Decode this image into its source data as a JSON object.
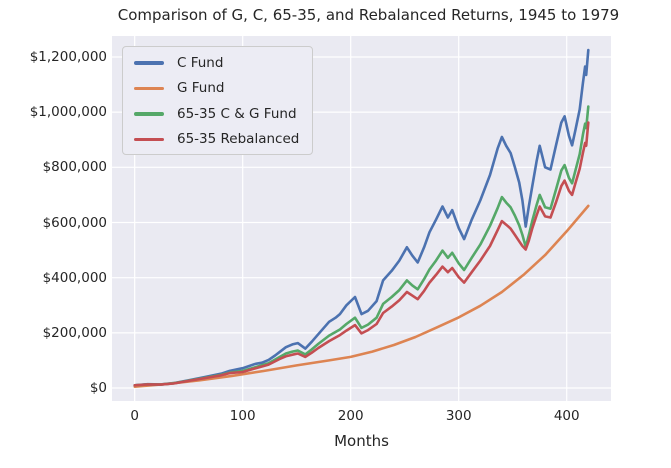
{
  "figure": {
    "background": "#ffffff",
    "plot_background": "#eaeaf2",
    "grid_color": "#ffffff",
    "text_color": "#262626"
  },
  "chart_data": {
    "type": "line",
    "title": "Comparison of G, C, 65-35, and Rebalanced Returns, 1945 to 1979",
    "xlabel": "Months",
    "ylabel": "",
    "grid": true,
    "legend_position": "upper-left",
    "xlim": [
      -21,
      441
    ],
    "ylim": [
      -47000,
      1276000
    ],
    "x_ticks": [
      {
        "value": 0,
        "label": "0"
      },
      {
        "value": 100,
        "label": "100"
      },
      {
        "value": 200,
        "label": "200"
      },
      {
        "value": 300,
        "label": "300"
      },
      {
        "value": 400,
        "label": "400"
      }
    ],
    "y_ticks": [
      {
        "value": 0,
        "label": "$0"
      },
      {
        "value": 200000,
        "label": "$200,000"
      },
      {
        "value": 400000,
        "label": "$400,000"
      },
      {
        "value": 600000,
        "label": "$600,000"
      },
      {
        "value": 800000,
        "label": "$800,000"
      },
      {
        "value": 1000000,
        "label": "$1,000,000"
      },
      {
        "value": 1200000,
        "label": "$1,200,000"
      }
    ],
    "series": [
      {
        "name": "C Fund",
        "color": "#4c72b0",
        "points": [
          [
            0,
            10000
          ],
          [
            12,
            14000
          ],
          [
            24,
            13000
          ],
          [
            36,
            18000
          ],
          [
            50,
            28000
          ],
          [
            65,
            40000
          ],
          [
            80,
            52000
          ],
          [
            88,
            62000
          ],
          [
            95,
            68000
          ],
          [
            100,
            72000
          ],
          [
            106,
            80000
          ],
          [
            112,
            88000
          ],
          [
            118,
            92000
          ],
          [
            124,
            102000
          ],
          [
            130,
            118000
          ],
          [
            134,
            130000
          ],
          [
            140,
            148000
          ],
          [
            146,
            158000
          ],
          [
            151,
            163000
          ],
          [
            158,
            143000
          ],
          [
            164,
            168000
          ],
          [
            170,
            195000
          ],
          [
            180,
            240000
          ],
          [
            186,
            255000
          ],
          [
            190,
            268000
          ],
          [
            196,
            300000
          ],
          [
            204,
            330000
          ],
          [
            210,
            268000
          ],
          [
            216,
            280000
          ],
          [
            224,
            315000
          ],
          [
            230,
            390000
          ],
          [
            238,
            425000
          ],
          [
            245,
            462000
          ],
          [
            252,
            510000
          ],
          [
            257,
            480000
          ],
          [
            262,
            455000
          ],
          [
            268,
            510000
          ],
          [
            273,
            565000
          ],
          [
            279,
            610000
          ],
          [
            285,
            658000
          ],
          [
            290,
            618000
          ],
          [
            294,
            645000
          ],
          [
            300,
            580000
          ],
          [
            305,
            540000
          ],
          [
            312,
            610000
          ],
          [
            320,
            680000
          ],
          [
            329,
            772000
          ],
          [
            336,
            868000
          ],
          [
            340,
            910000
          ],
          [
            344,
            878000
          ],
          [
            348,
            852000
          ],
          [
            352,
            800000
          ],
          [
            356,
            745000
          ],
          [
            359,
            680000
          ],
          [
            362,
            585000
          ],
          [
            365,
            660000
          ],
          [
            368,
            730000
          ],
          [
            372,
            820000
          ],
          [
            375,
            878000
          ],
          [
            380,
            800000
          ],
          [
            385,
            792000
          ],
          [
            390,
            878000
          ],
          [
            395,
            962000
          ],
          [
            398,
            985000
          ],
          [
            402,
            915000
          ],
          [
            405,
            880000
          ],
          [
            408,
            935000
          ],
          [
            412,
            1010000
          ],
          [
            415,
            1105000
          ],
          [
            417,
            1165000
          ],
          [
            418,
            1135000
          ],
          [
            420,
            1225000
          ]
        ]
      },
      {
        "name": "G Fund",
        "color": "#dd8452",
        "points": [
          [
            0,
            5000
          ],
          [
            30,
            15000
          ],
          [
            60,
            28000
          ],
          [
            90,
            44000
          ],
          [
            120,
            62000
          ],
          [
            150,
            82000
          ],
          [
            180,
            100000
          ],
          [
            200,
            113000
          ],
          [
            220,
            132000
          ],
          [
            240,
            156000
          ],
          [
            260,
            185000
          ],
          [
            280,
            220000
          ],
          [
            300,
            256000
          ],
          [
            320,
            298000
          ],
          [
            340,
            348000
          ],
          [
            360,
            410000
          ],
          [
            380,
            482000
          ],
          [
            400,
            568000
          ],
          [
            420,
            660000
          ]
        ]
      },
      {
        "name": "65-35 C & G Fund",
        "color": "#55a868",
        "points": [
          [
            0,
            10000
          ],
          [
            12,
            13000
          ],
          [
            24,
            12500
          ],
          [
            36,
            17000
          ],
          [
            50,
            27000
          ],
          [
            65,
            37000
          ],
          [
            80,
            48000
          ],
          [
            88,
            56000
          ],
          [
            100,
            62000
          ],
          [
            112,
            76000
          ],
          [
            124,
            90000
          ],
          [
            134,
            112000
          ],
          [
            140,
            125000
          ],
          [
            146,
            132000
          ],
          [
            151,
            136000
          ],
          [
            158,
            122000
          ],
          [
            164,
            140000
          ],
          [
            170,
            160000
          ],
          [
            180,
            190000
          ],
          [
            190,
            212000
          ],
          [
            196,
            232000
          ],
          [
            204,
            255000
          ],
          [
            210,
            218000
          ],
          [
            216,
            230000
          ],
          [
            224,
            255000
          ],
          [
            230,
            305000
          ],
          [
            238,
            330000
          ],
          [
            245,
            355000
          ],
          [
            252,
            390000
          ],
          [
            257,
            372000
          ],
          [
            262,
            358000
          ],
          [
            268,
            395000
          ],
          [
            273,
            430000
          ],
          [
            279,
            462000
          ],
          [
            285,
            498000
          ],
          [
            290,
            472000
          ],
          [
            294,
            490000
          ],
          [
            300,
            452000
          ],
          [
            305,
            428000
          ],
          [
            312,
            472000
          ],
          [
            320,
            520000
          ],
          [
            329,
            588000
          ],
          [
            336,
            652000
          ],
          [
            340,
            692000
          ],
          [
            344,
            672000
          ],
          [
            348,
            655000
          ],
          [
            352,
            625000
          ],
          [
            356,
            590000
          ],
          [
            359,
            555000
          ],
          [
            362,
            512000
          ],
          [
            365,
            555000
          ],
          [
            368,
            605000
          ],
          [
            372,
            662000
          ],
          [
            375,
            700000
          ],
          [
            380,
            655000
          ],
          [
            385,
            650000
          ],
          [
            390,
            718000
          ],
          [
            395,
            788000
          ],
          [
            398,
            808000
          ],
          [
            402,
            762000
          ],
          [
            405,
            742000
          ],
          [
            408,
            788000
          ],
          [
            412,
            848000
          ],
          [
            415,
            918000
          ],
          [
            417,
            958000
          ],
          [
            418,
            942000
          ],
          [
            420,
            1020000
          ]
        ]
      },
      {
        "name": "65-35 Rebalanced",
        "color": "#c44e52",
        "points": [
          [
            0,
            10000
          ],
          [
            12,
            13000
          ],
          [
            24,
            12500
          ],
          [
            36,
            16500
          ],
          [
            50,
            26000
          ],
          [
            65,
            36000
          ],
          [
            80,
            46000
          ],
          [
            88,
            54000
          ],
          [
            100,
            58000
          ],
          [
            112,
            72000
          ],
          [
            124,
            85000
          ],
          [
            134,
            105000
          ],
          [
            140,
            115000
          ],
          [
            146,
            121000
          ],
          [
            151,
            125000
          ],
          [
            158,
            113000
          ],
          [
            164,
            128000
          ],
          [
            170,
            145000
          ],
          [
            180,
            170000
          ],
          [
            190,
            192000
          ],
          [
            196,
            208000
          ],
          [
            204,
            228000
          ],
          [
            210,
            198000
          ],
          [
            216,
            210000
          ],
          [
            224,
            232000
          ],
          [
            230,
            272000
          ],
          [
            238,
            295000
          ],
          [
            245,
            318000
          ],
          [
            252,
            348000
          ],
          [
            257,
            335000
          ],
          [
            262,
            322000
          ],
          [
            268,
            352000
          ],
          [
            273,
            382000
          ],
          [
            279,
            410000
          ],
          [
            285,
            440000
          ],
          [
            290,
            420000
          ],
          [
            294,
            435000
          ],
          [
            300,
            402000
          ],
          [
            305,
            382000
          ],
          [
            312,
            420000
          ],
          [
            320,
            462000
          ],
          [
            329,
            515000
          ],
          [
            336,
            572000
          ],
          [
            340,
            605000
          ],
          [
            344,
            592000
          ],
          [
            348,
            578000
          ],
          [
            352,
            555000
          ],
          [
            356,
            532000
          ],
          [
            359,
            515000
          ],
          [
            362,
            502000
          ],
          [
            365,
            535000
          ],
          [
            368,
            578000
          ],
          [
            372,
            625000
          ],
          [
            375,
            658000
          ],
          [
            380,
            622000
          ],
          [
            385,
            618000
          ],
          [
            390,
            672000
          ],
          [
            395,
            732000
          ],
          [
            398,
            752000
          ],
          [
            402,
            715000
          ],
          [
            405,
            700000
          ],
          [
            408,
            742000
          ],
          [
            412,
            795000
          ],
          [
            415,
            852000
          ],
          [
            417,
            888000
          ],
          [
            418,
            878000
          ],
          [
            420,
            962000
          ]
        ]
      }
    ]
  }
}
